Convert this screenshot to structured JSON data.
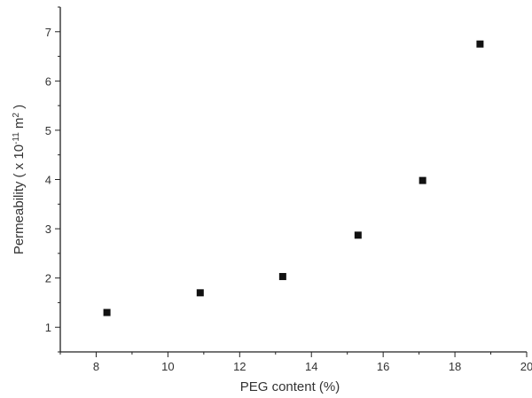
{
  "chart_data": {
    "type": "scatter",
    "title": "",
    "xlabel": "PEG content (%)",
    "ylabel": {
      "prefix": "Permeability ( x 10",
      "exp": "-11",
      "unit": " m",
      "unit_exp": "2",
      "suffix": " )"
    },
    "xlim": [
      7,
      20
    ],
    "ylim": [
      0.5,
      7.5
    ],
    "xticks": [
      8,
      10,
      12,
      14,
      16,
      18,
      20
    ],
    "yticks": [
      1,
      2,
      3,
      4,
      5,
      6,
      7
    ],
    "x_tick_labels": [
      "8",
      "10",
      "12",
      "14",
      "16",
      "18",
      "20"
    ],
    "y_tick_labels": [
      "1",
      "2",
      "3",
      "4",
      "5",
      "6",
      "7"
    ],
    "grid": false,
    "marker": "square",
    "marker_color": "#111111",
    "series": [
      {
        "points": [
          {
            "x": 8.3,
            "y": 1.3
          },
          {
            "x": 10.9,
            "y": 1.7
          },
          {
            "x": 13.2,
            "y": 2.03
          },
          {
            "x": 15.3,
            "y": 2.87
          },
          {
            "x": 17.1,
            "y": 3.98
          },
          {
            "x": 18.7,
            "y": 6.75
          }
        ]
      }
    ]
  }
}
